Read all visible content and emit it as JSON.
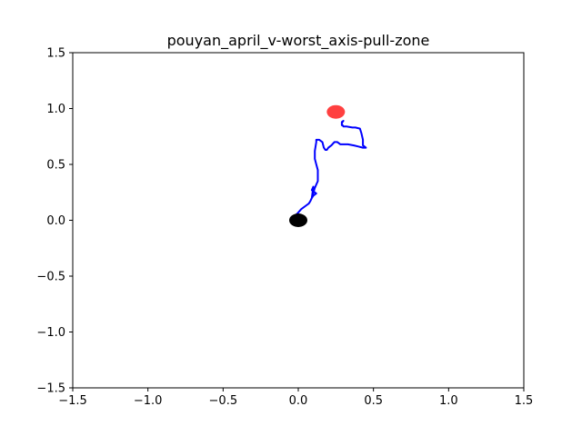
{
  "chart_data": {
    "type": "line",
    "title": "pouyan_april_v-worst_axis-pull-zone",
    "xlabel": "",
    "ylabel": "",
    "xlim": [
      -1.5,
      1.5
    ],
    "ylim": [
      -1.5,
      1.5
    ],
    "grid": false,
    "x_ticks": [
      -1.5,
      -1.0,
      -0.5,
      0.0,
      0.5,
      1.0,
      1.5
    ],
    "y_ticks": [
      -1.5,
      -1.0,
      -0.5,
      0.0,
      0.5,
      1.0,
      1.5
    ],
    "x_tick_labels": [
      "−1.5",
      "−1.0",
      "−0.5",
      "0.0",
      "0.5",
      "1.0",
      "1.5"
    ],
    "y_tick_labels": [
      "−1.5",
      "−1.0",
      "−0.5",
      "0.0",
      "0.5",
      "1.0",
      "1.5"
    ],
    "series": [
      {
        "color": "#0000ff",
        "x": [
          -0.02,
          0.0,
          0.02,
          0.05,
          0.07,
          0.08,
          0.09,
          0.1,
          0.12,
          0.09,
          0.1,
          0.09,
          0.11,
          0.13,
          0.13,
          0.12,
          0.11,
          0.11,
          0.12,
          0.12,
          0.14,
          0.16,
          0.17,
          0.18,
          0.19,
          0.2,
          0.22,
          0.24,
          0.26,
          0.28,
          0.33,
          0.37,
          0.4,
          0.43,
          0.45,
          0.43,
          0.43,
          0.42,
          0.41,
          0.38,
          0.36,
          0.32,
          0.3,
          0.29,
          0.29,
          0.3,
          0.29,
          0.29
        ],
        "y": [
          0.04,
          0.07,
          0.1,
          0.13,
          0.15,
          0.17,
          0.2,
          0.22,
          0.24,
          0.27,
          0.3,
          0.2,
          0.29,
          0.35,
          0.45,
          0.5,
          0.55,
          0.62,
          0.7,
          0.72,
          0.72,
          0.7,
          0.65,
          0.63,
          0.63,
          0.65,
          0.67,
          0.7,
          0.7,
          0.68,
          0.68,
          0.67,
          0.66,
          0.65,
          0.65,
          0.67,
          0.72,
          0.78,
          0.82,
          0.83,
          0.83,
          0.84,
          0.84,
          0.86,
          0.88,
          0.89,
          0.87,
          0.85
        ]
      }
    ],
    "markers": [
      {
        "x": 0.0,
        "y": 0.0,
        "color": "#000000",
        "alpha": 1.0
      },
      {
        "x": 0.25,
        "y": 0.97,
        "color": "#ff0000",
        "alpha": 0.75
      }
    ]
  }
}
